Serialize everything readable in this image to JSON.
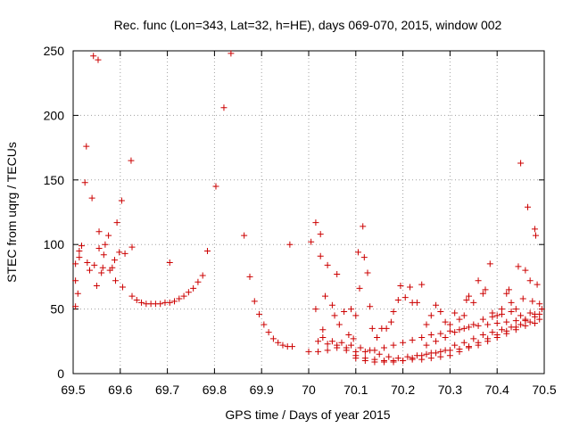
{
  "chart_data": {
    "type": "scatter",
    "title": "Rec. func (Lon=343, Lat=32, h=HE), days 069-070, 2015, window 002",
    "xlabel": "GPS time / Days of year 2015",
    "ylabel": "STEC from uqrg / TECUs",
    "xlim": [
      69.5,
      70.5
    ],
    "ylim": [
      0,
      250
    ],
    "xticks": [
      69.5,
      69.6,
      69.7,
      69.8,
      69.9,
      70.0,
      70.1,
      70.2,
      70.3,
      70.4,
      70.5
    ],
    "xtick_labels": [
      "69.5",
      "69.6",
      "69.7",
      "69.8",
      "69.9",
      "70",
      "70.1",
      "70.2",
      "70.3",
      "70.4",
      "70.5"
    ],
    "yticks": [
      0,
      50,
      100,
      150,
      200,
      250
    ],
    "ytick_labels": [
      "0",
      "50",
      "100",
      "150",
      "200",
      "250"
    ],
    "grid": true,
    "marker": "+",
    "color": "#cc0000",
    "series": [
      {
        "points": [
          [
            69.505,
            52
          ],
          [
            69.505,
            72
          ],
          [
            69.505,
            85
          ],
          [
            69.51,
            62
          ],
          [
            69.513,
            90
          ],
          [
            69.513,
            95
          ],
          [
            69.518,
            99
          ],
          [
            69.525,
            148
          ],
          [
            69.528,
            176
          ],
          [
            69.53,
            86
          ],
          [
            69.535,
            80
          ],
          [
            69.54,
            136
          ],
          [
            69.543,
            246
          ],
          [
            69.545,
            84
          ],
          [
            69.55,
            68
          ],
          [
            69.553,
            243
          ],
          [
            69.555,
            110
          ],
          [
            69.555,
            97
          ],
          [
            69.56,
            78
          ],
          [
            69.563,
            82
          ],
          [
            69.565,
            92
          ],
          [
            69.568,
            100
          ],
          [
            69.575,
            107
          ],
          [
            69.578,
            80
          ],
          [
            69.583,
            82
          ],
          [
            69.588,
            88
          ],
          [
            69.59,
            72
          ],
          [
            69.593,
            117
          ],
          [
            69.598,
            94
          ],
          [
            69.603,
            134
          ],
          [
            69.605,
            67
          ],
          [
            69.61,
            93
          ],
          [
            69.623,
            165
          ],
          [
            69.625,
            98
          ],
          [
            69.625,
            60
          ],
          [
            69.635,
            57
          ],
          [
            69.645,
            55
          ],
          [
            69.655,
            54
          ],
          [
            69.665,
            54
          ],
          [
            69.675,
            54
          ],
          [
            69.685,
            54
          ],
          [
            69.695,
            55
          ],
          [
            69.705,
            55
          ],
          [
            69.705,
            86
          ],
          [
            69.715,
            56
          ],
          [
            69.725,
            58
          ],
          [
            69.735,
            60
          ],
          [
            69.745,
            63
          ],
          [
            69.755,
            66
          ],
          [
            69.765,
            71
          ],
          [
            69.775,
            76
          ],
          [
            69.785,
            95
          ],
          [
            69.803,
            145
          ],
          [
            69.82,
            206
          ],
          [
            69.835,
            248
          ],
          [
            69.863,
            107
          ],
          [
            69.875,
            75
          ],
          [
            69.885,
            56
          ],
          [
            69.895,
            46
          ],
          [
            69.905,
            38
          ],
          [
            69.915,
            32
          ],
          [
            69.925,
            27
          ],
          [
            69.935,
            24
          ],
          [
            69.945,
            22
          ],
          [
            69.955,
            21
          ],
          [
            69.96,
            100
          ],
          [
            69.965,
            21
          ],
          [
            70.005,
            102
          ],
          [
            70.015,
            117
          ],
          [
            70.015,
            50
          ],
          [
            70.025,
            108
          ],
          [
            70.025,
            91
          ],
          [
            70.03,
            34
          ],
          [
            70.035,
            60
          ],
          [
            70.04,
            84
          ],
          [
            70.05,
            53
          ],
          [
            70.06,
            77
          ],
          [
            70.055,
            45
          ],
          [
            70.065,
            38
          ],
          [
            70.075,
            48
          ],
          [
            70.085,
            30
          ],
          [
            70.09,
            50
          ],
          [
            70.095,
            27
          ],
          [
            70.1,
            45
          ],
          [
            70.105,
            94
          ],
          [
            70.108,
            66
          ],
          [
            70.115,
            114
          ],
          [
            70.118,
            90
          ],
          [
            70.125,
            78
          ],
          [
            70.13,
            52
          ],
          [
            70.135,
            35
          ],
          [
            70.145,
            28
          ],
          [
            70.155,
            35
          ],
          [
            70.165,
            35
          ],
          [
            70.175,
            40
          ],
          [
            70.18,
            48
          ],
          [
            70.19,
            57
          ],
          [
            70.195,
            68
          ],
          [
            70.205,
            59
          ],
          [
            70.215,
            67
          ],
          [
            70.22,
            55
          ],
          [
            70.23,
            55
          ],
          [
            70.24,
            69
          ],
          [
            70.25,
            38
          ],
          [
            70.26,
            45
          ],
          [
            70.27,
            53
          ],
          [
            70.28,
            48
          ],
          [
            70.29,
            40
          ],
          [
            70.3,
            38
          ],
          [
            70.31,
            47
          ],
          [
            70.32,
            42
          ],
          [
            70.33,
            45
          ],
          [
            70.335,
            57
          ],
          [
            70.34,
            60
          ],
          [
            70.35,
            55
          ],
          [
            70.36,
            72
          ],
          [
            70.37,
            62
          ],
          [
            70.375,
            65
          ],
          [
            70.385,
            85
          ],
          [
            70.39,
            47
          ],
          [
            70.4,
            45
          ],
          [
            70.41,
            50
          ],
          [
            70.42,
            62
          ],
          [
            70.425,
            65
          ],
          [
            70.43,
            55
          ],
          [
            70.44,
            50
          ],
          [
            70.445,
            83
          ],
          [
            70.45,
            163
          ],
          [
            70.455,
            58
          ],
          [
            70.46,
            80
          ],
          [
            70.465,
            129
          ],
          [
            70.47,
            72
          ],
          [
            70.475,
            56
          ],
          [
            70.48,
            112
          ],
          [
            70.482,
            107
          ],
          [
            70.485,
            69
          ],
          [
            70.49,
            54
          ],
          [
            70.495,
            50
          ],
          [
            70.0,
            17
          ],
          [
            70.02,
            17
          ],
          [
            70.04,
            18
          ],
          [
            70.06,
            20
          ],
          [
            70.08,
            18
          ],
          [
            70.1,
            17
          ],
          [
            70.12,
            17
          ],
          [
            70.14,
            18
          ],
          [
            70.16,
            20
          ],
          [
            70.18,
            22
          ],
          [
            70.2,
            24
          ],
          [
            70.22,
            26
          ],
          [
            70.24,
            28
          ],
          [
            70.26,
            30
          ],
          [
            70.28,
            31
          ],
          [
            70.3,
            33
          ],
          [
            70.32,
            34
          ],
          [
            70.34,
            36
          ],
          [
            70.36,
            37
          ],
          [
            70.38,
            38
          ],
          [
            70.4,
            39
          ],
          [
            70.42,
            40
          ],
          [
            70.44,
            41
          ],
          [
            70.46,
            42
          ],
          [
            70.48,
            44
          ],
          [
            70.02,
            25
          ],
          [
            70.04,
            23
          ],
          [
            70.06,
            22
          ],
          [
            70.08,
            20
          ],
          [
            70.1,
            14
          ],
          [
            70.12,
            12
          ],
          [
            70.14,
            11
          ],
          [
            70.16,
            10
          ],
          [
            70.18,
            10
          ],
          [
            70.2,
            10
          ],
          [
            70.22,
            11
          ],
          [
            70.24,
            11
          ],
          [
            70.26,
            12
          ],
          [
            70.28,
            13
          ],
          [
            70.3,
            14
          ],
          [
            70.32,
            17
          ],
          [
            70.34,
            20
          ],
          [
            70.36,
            22
          ],
          [
            70.38,
            25
          ],
          [
            70.4,
            28
          ],
          [
            70.42,
            31
          ],
          [
            70.44,
            34
          ],
          [
            70.46,
            37
          ],
          [
            70.48,
            39
          ],
          [
            70.03,
            28
          ],
          [
            70.05,
            25
          ],
          [
            70.07,
            24
          ],
          [
            70.09,
            22
          ],
          [
            70.11,
            20
          ],
          [
            70.13,
            18
          ],
          [
            70.15,
            15
          ],
          [
            70.17,
            13
          ],
          [
            70.19,
            12
          ],
          [
            70.21,
            13
          ],
          [
            70.23,
            14
          ],
          [
            70.25,
            15
          ],
          [
            70.27,
            16
          ],
          [
            70.29,
            18
          ],
          [
            70.31,
            22
          ],
          [
            70.33,
            24
          ],
          [
            70.35,
            27
          ],
          [
            70.37,
            30
          ],
          [
            70.39,
            32
          ],
          [
            70.41,
            34
          ],
          [
            70.43,
            36
          ],
          [
            70.45,
            38
          ],
          [
            70.47,
            40
          ],
          [
            70.49,
            42
          ],
          [
            70.1,
            12
          ],
          [
            70.12,
            10
          ],
          [
            70.14,
            9
          ],
          [
            70.16,
            9
          ],
          [
            70.18,
            9
          ],
          [
            70.2,
            10
          ],
          [
            70.22,
            12
          ],
          [
            70.24,
            14
          ],
          [
            70.26,
            16
          ],
          [
            70.28,
            17
          ],
          [
            70.3,
            18
          ],
          [
            70.32,
            19
          ],
          [
            70.34,
            21
          ],
          [
            70.36,
            24
          ],
          [
            70.38,
            27
          ],
          [
            70.4,
            30
          ],
          [
            70.42,
            33
          ],
          [
            70.44,
            36
          ],
          [
            70.46,
            41
          ],
          [
            70.48,
            46
          ],
          [
            70.25,
            22
          ],
          [
            70.27,
            25
          ],
          [
            70.29,
            28
          ],
          [
            70.31,
            32
          ],
          [
            70.33,
            35
          ],
          [
            70.35,
            38
          ],
          [
            70.37,
            42
          ],
          [
            70.39,
            44
          ],
          [
            70.41,
            46
          ],
          [
            70.43,
            48
          ],
          [
            70.45,
            45
          ],
          [
            70.47,
            47
          ],
          [
            70.49,
            46
          ]
        ]
      }
    ]
  }
}
